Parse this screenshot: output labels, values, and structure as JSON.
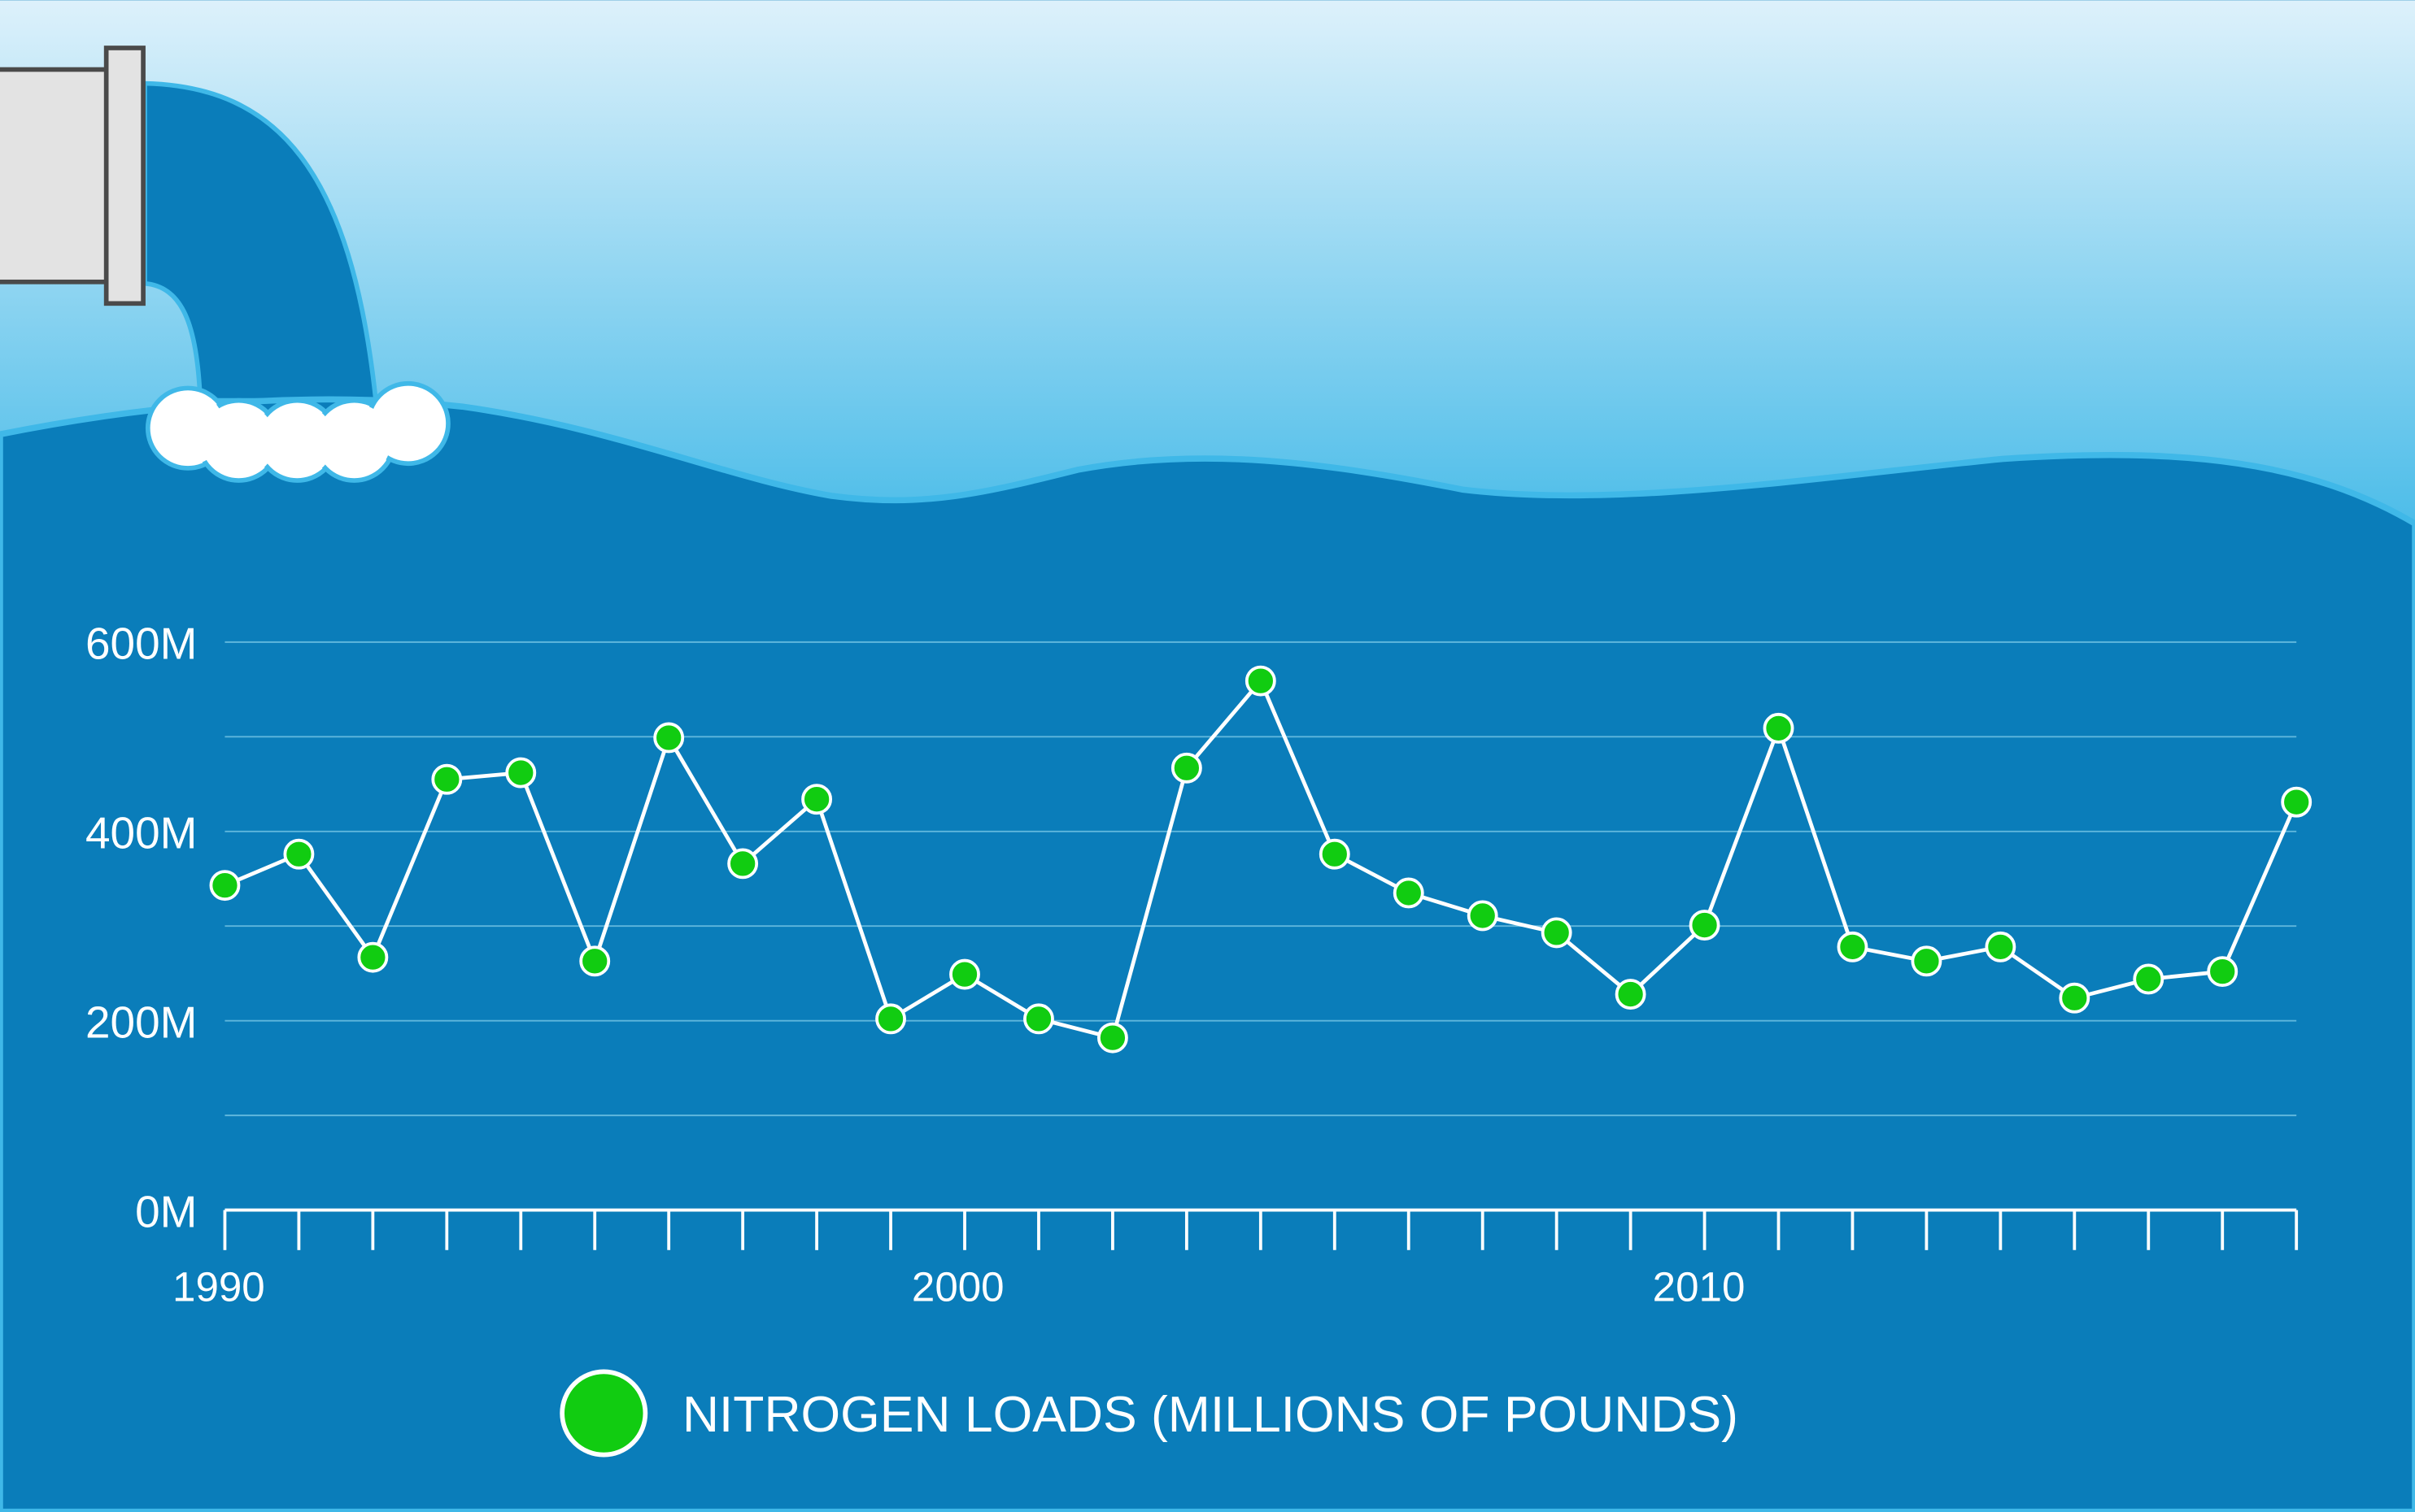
{
  "colors": {
    "sky_top": "#ddf1fb",
    "sky_bottom": "#52bfe9",
    "water": "#0a7dba",
    "water_edge": "#3fb8e8",
    "marker": "#11cc11",
    "line": "#ffffff",
    "pipe": "#e3e3e3"
  },
  "chart_data": {
    "type": "line",
    "title": "",
    "xlabel": "",
    "ylabel": "",
    "xlim": [
      1990,
      2018
    ],
    "ylim": [
      0,
      600
    ],
    "grid": true,
    "legend_position": "bottom-center",
    "x_tick_labels": [
      "1990",
      "2000",
      "2010"
    ],
    "y_tick_labels": [
      "0M",
      "200M",
      "400M",
      "600M"
    ],
    "x": [
      1990,
      1991,
      1992,
      1993,
      1994,
      1995,
      1996,
      1997,
      1998,
      1999,
      2000,
      2001,
      2002,
      2003,
      2004,
      2005,
      2006,
      2007,
      2008,
      2009,
      2010,
      2011,
      2012,
      2013,
      2014,
      2015,
      2016,
      2017,
      2018
    ],
    "series": [
      {
        "name": "NITROGEN LOADS (MILLIONS OF POUNDS)",
        "values": [
          343,
          376,
          267,
          455,
          462,
          263,
          499,
          366,
          434,
          202,
          249,
          202,
          182,
          467,
          559,
          376,
          335,
          311,
          293,
          228,
          301,
          509,
          278,
          263,
          278,
          224,
          244,
          252,
          431
        ]
      }
    ]
  }
}
